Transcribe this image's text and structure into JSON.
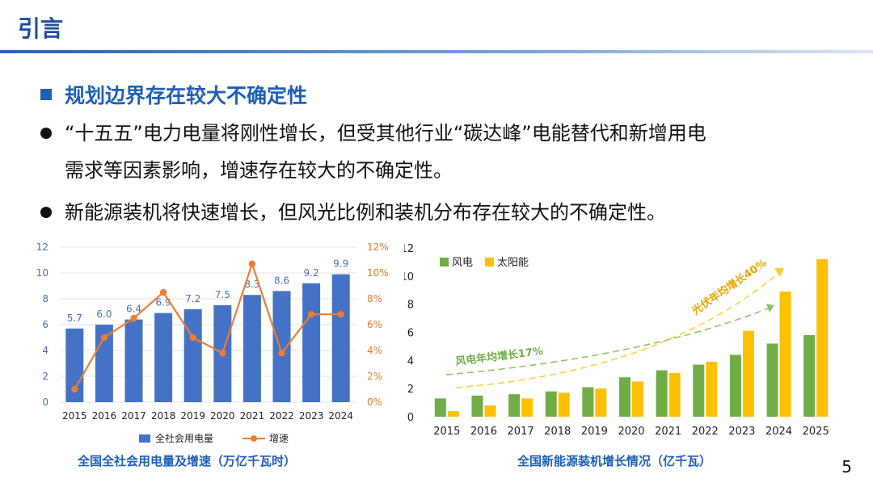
{
  "slide": {
    "title": "引言",
    "heading": "规划边界存在较大不确定性",
    "bullets": [
      {
        "line1": "“十五五”电力电量将刚性增长，但受其他行业“碳达峰”电能替代和新增用电",
        "line2": "需求等因素影响，增速存在较大的不确定性。"
      },
      {
        "line1": "新能源装机将快速增长，但风光比例和装机分布存在较大的不确定性。"
      }
    ],
    "page_number": "5",
    "captions": {
      "left": "全国全社会用电量及增速（万亿千瓦时）",
      "right": "全国新能源装机增长情况（亿千瓦）"
    }
  },
  "chart_data": [
    {
      "type": "bar",
      "categories": [
        "2015",
        "2016",
        "2017",
        "2018",
        "2019",
        "2020",
        "2021",
        "2022",
        "2023",
        "2024"
      ],
      "series": [
        {
          "name": "全社会用电量",
          "type": "bar",
          "axis": "left",
          "color": "#4472c4",
          "values": [
            5.7,
            6.0,
            6.4,
            6.9,
            7.2,
            7.5,
            8.3,
            8.6,
            9.2,
            9.9
          ]
        },
        {
          "name": "增速",
          "type": "line",
          "axis": "right",
          "color": "#ed7d31",
          "values": [
            1.0,
            5.0,
            6.5,
            8.5,
            5.0,
            3.8,
            10.7,
            3.8,
            6.8,
            6.8
          ]
        }
      ],
      "yleft": {
        "min": 0,
        "max": 12,
        "ticks": [
          "0",
          "2",
          "4",
          "6",
          "8",
          "10",
          "12"
        ]
      },
      "yright": {
        "min": 0,
        "max": 12,
        "ticks": [
          "0%",
          "2%",
          "4%",
          "6%",
          "8%",
          "10%",
          "12%"
        ]
      },
      "legend_position": "bottom",
      "grid": true
    },
    {
      "type": "bar",
      "categories": [
        "2015",
        "2016",
        "2017",
        "2018",
        "2019",
        "2020",
        "2021",
        "2022",
        "2023",
        "2024",
        "2025"
      ],
      "series": [
        {
          "name": "风电",
          "color": "#70ad47",
          "values": [
            1.3,
            1.5,
            1.6,
            1.8,
            2.1,
            2.8,
            3.3,
            3.7,
            4.4,
            5.2,
            5.8
          ]
        },
        {
          "name": "太阳能",
          "color": "#ffc000",
          "values": [
            0.4,
            0.8,
            1.3,
            1.7,
            2.0,
            2.5,
            3.1,
            3.9,
            6.1,
            8.9,
            11.2
          ]
        }
      ],
      "yaxis": {
        "min": 0,
        "max": 12,
        "ticks": [
          "0",
          "2",
          "4",
          "6",
          "8",
          "10",
          "12"
        ]
      },
      "legend_position": "top-left",
      "grid": false,
      "annotations": [
        {
          "text": "风电年均增长17%",
          "color": "#70ad47"
        },
        {
          "text": "光伏年均增长40%",
          "color": "#e3a700"
        }
      ]
    }
  ]
}
